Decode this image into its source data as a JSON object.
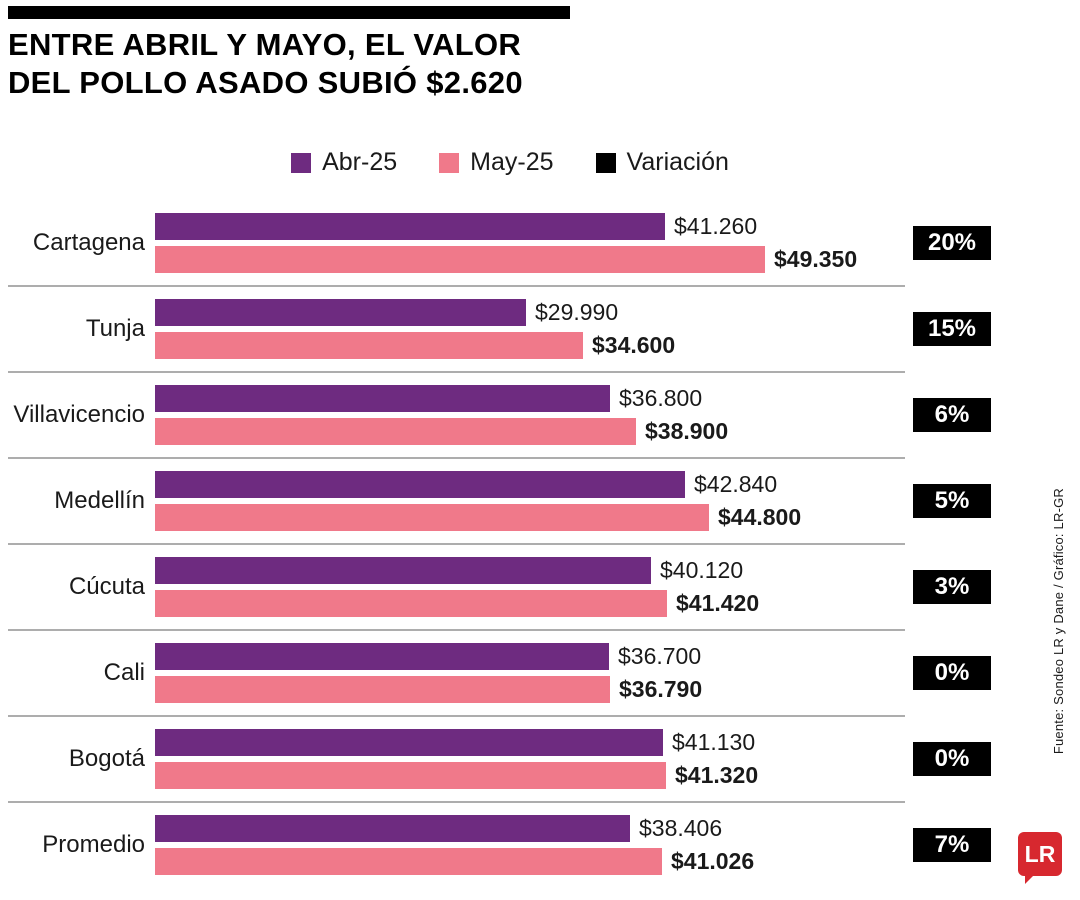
{
  "title_lines": [
    "ENTRE ABRIL Y MAYO, EL VALOR",
    "DEL POLLO ASADO SUBIÓ $2.620"
  ],
  "legend": [
    "Abr-25",
    "May-25",
    "Variación"
  ],
  "source_note": "Fuente: Sondeo LR y Dane / Gráfico: LR-GR",
  "logo_text": "LR",
  "colors": {
    "abr_25": "#6e2b80",
    "may_25": "#f0798a",
    "variacion": "#000000",
    "logo_red": "#d7282f",
    "separator": "#adadad"
  },
  "chart_data": {
    "type": "bar",
    "orientation": "horizontal",
    "title": "ENTRE ABRIL Y MAYO, EL VALOR DEL POLLO ASADO SUBIÓ $2.620",
    "series": [
      "Abr-25",
      "May-25"
    ],
    "variation_series": "Variación",
    "xlim": [
      0,
      49350
    ],
    "grid": false,
    "legend_position": "top-center",
    "rows": [
      {
        "city": "Cartagena",
        "abr": 41260,
        "may": 49350,
        "abr_label": "$41.260",
        "may_label": "$49.350",
        "variation": "20%"
      },
      {
        "city": "Tunja",
        "abr": 29990,
        "may": 34600,
        "abr_label": "$29.990",
        "may_label": "$34.600",
        "variation": "15%"
      },
      {
        "city": "Villavicencio",
        "abr": 36800,
        "may": 38900,
        "abr_label": "$36.800",
        "may_label": "$38.900",
        "variation": "6%"
      },
      {
        "city": "Medellín",
        "abr": 42840,
        "may": 44800,
        "abr_label": "$42.840",
        "may_label": "$44.800",
        "variation": "5%"
      },
      {
        "city": "Cúcuta",
        "abr": 40120,
        "may": 41420,
        "abr_label": "$40.120",
        "may_label": "$41.420",
        "variation": "3%"
      },
      {
        "city": "Cali",
        "abr": 36700,
        "may": 36790,
        "abr_label": "$36.700",
        "may_label": "$36.790",
        "variation": "0%"
      },
      {
        "city": "Bogotá",
        "abr": 41130,
        "may": 41320,
        "abr_label": "$41.130",
        "may_label": "$41.320",
        "variation": "0%"
      },
      {
        "city": "Promedio",
        "abr": 38406,
        "may": 41026,
        "abr_label": "$38.406",
        "may_label": "$41.026",
        "variation": "7%"
      }
    ]
  }
}
